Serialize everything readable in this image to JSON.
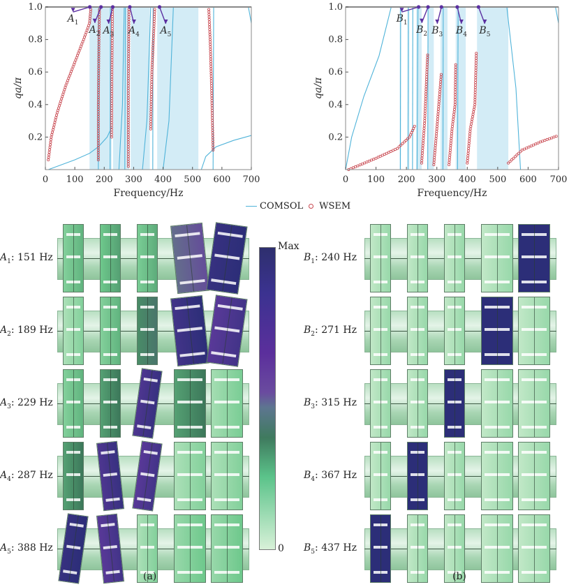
{
  "legend": {
    "comsol_label": "COMSOL",
    "wsem_label": "WSEM",
    "comsol_color": "#4fb3d9",
    "wsem_color": "#c8474f"
  },
  "chart_data": [
    {
      "type": "line",
      "panel": "a",
      "xlabel": "Frequency/Hz",
      "ylabel": "qa/π",
      "xlim": [
        0,
        700
      ],
      "ylim": [
        0,
        1.0
      ],
      "xticks": [
        0,
        100,
        200,
        300,
        400,
        500,
        600,
        700
      ],
      "yticks": [
        0.2,
        0.4,
        0.6,
        0.8,
        1.0
      ],
      "bandgaps": [
        [
          150,
          225
        ],
        [
          230,
          285
        ],
        [
          290,
          355
        ],
        [
          380,
          520
        ]
      ],
      "series": [
        {
          "name": "COMSOL",
          "kind": "line",
          "curves": [
            [
              [
                10,
                0
              ],
              [
                100,
                0.06
              ],
              [
                150,
                0.1
              ],
              [
                180,
                0.14
              ],
              [
                210,
                0.2
              ],
              [
                225,
                0.26
              ]
            ],
            [
              [
                530,
                0
              ],
              [
                545,
                0.08
              ],
              [
                580,
                0.14
              ],
              [
                640,
                0.18
              ],
              [
                700,
                0.21
              ]
            ],
            [
              [
                690,
                1.0
              ],
              [
                700,
                0.9
              ]
            ],
            [
              [
                180,
                0
              ],
              [
                181,
                1.0
              ]
            ],
            [
              [
                220,
                0
              ],
              [
                221,
                1.0
              ]
            ],
            [
              [
                270,
                0
              ],
              [
                272,
                1.0
              ]
            ],
            [
              [
                365,
                0
              ],
              [
                366,
                1.0
              ]
            ],
            [
              [
                570,
                0
              ],
              [
                572,
                1.0
              ]
            ],
            [
              [
                330,
                0
              ],
              [
                345,
                0.3
              ],
              [
                358,
                1.0
              ]
            ],
            [
              [
                400,
                0
              ],
              [
                420,
                0.3
              ],
              [
                435,
                1.0
              ]
            ],
            [
              [
                250,
                0
              ],
              [
                262,
                0.4
              ],
              [
                268,
                1.0
              ]
            ]
          ]
        },
        {
          "name": "WSEM",
          "kind": "scatter",
          "curves": [
            [
              [
                10,
                0.06
              ],
              [
                20,
                0.2
              ],
              [
                40,
                0.35
              ],
              [
                70,
                0.52
              ],
              [
                100,
                0.66
              ],
              [
                130,
                0.8
              ],
              [
                150,
                0.9
              ],
              [
                155,
                1.0
              ]
            ],
            [
              [
                180,
                0.06
              ],
              [
                180,
                0.4
              ],
              [
                182,
                0.8
              ],
              [
                184,
                1.0
              ]
            ],
            [
              [
                225,
                0.2
              ],
              [
                226,
                0.6
              ],
              [
                228,
                1.0
              ]
            ],
            [
              [
                282,
                0.02
              ],
              [
                282,
                0.5
              ],
              [
                284,
                1.0
              ]
            ],
            [
              [
                358,
                0.25
              ],
              [
                362,
                0.6
              ],
              [
                372,
                1.0
              ]
            ],
            [
              [
                570,
                0.12
              ],
              [
                565,
                0.5
              ],
              [
                560,
                0.8
              ],
              [
                555,
                1.0
              ]
            ]
          ]
        }
      ],
      "annotations": [
        {
          "label": "A1",
          "x": 151,
          "y": 1.0
        },
        {
          "label": "A2",
          "x": 189,
          "y": 1.0
        },
        {
          "label": "A3",
          "x": 229,
          "y": 1.0
        },
        {
          "label": "A4",
          "x": 287,
          "y": 1.0
        },
        {
          "label": "A5",
          "x": 388,
          "y": 1.0
        }
      ]
    },
    {
      "type": "line",
      "panel": "b",
      "xlabel": "Frequency/Hz",
      "ylabel": "qa/π",
      "xlim": [
        0,
        700
      ],
      "ylim": [
        0,
        1.0
      ],
      "xticks": [
        0,
        100,
        200,
        300,
        400,
        500,
        600,
        700
      ],
      "yticks": [
        0.2,
        0.4,
        0.6,
        0.8,
        1.0
      ],
      "bandgaps": [
        [
          178,
          182
        ],
        [
          205,
          210
        ],
        [
          232,
          250
        ],
        [
          270,
          290
        ],
        [
          312,
          335
        ],
        [
          362,
          395
        ],
        [
          432,
          535
        ]
      ],
      "series": [
        {
          "name": "COMSOL",
          "kind": "line",
          "curves": [
            [
              [
                0,
                0
              ],
              [
                20,
                0.2
              ],
              [
                60,
                0.45
              ],
              [
                110,
                0.7
              ],
              [
                150,
                1.0
              ]
            ],
            [
              [
                180,
                0
              ],
              [
                181,
                1.0
              ]
            ],
            [
              [
                205,
                0
              ],
              [
                206,
                1.0
              ]
            ],
            [
              [
                220,
                0
              ],
              [
                221,
                1.0
              ]
            ],
            [
              [
                235,
                0
              ],
              [
                238,
                1.0
              ]
            ],
            [
              [
                270,
                0
              ],
              [
                271,
                1.0
              ]
            ],
            [
              [
                320,
                0
              ],
              [
                321,
                1.0
              ]
            ],
            [
              [
                368,
                0
              ],
              [
                370,
                1.0
              ]
            ],
            [
              [
                530,
                1.0
              ],
              [
                560,
                0.5
              ],
              [
                575,
                0
              ]
            ],
            [
              [
                690,
                1.0
              ],
              [
                700,
                0.9
              ]
            ]
          ]
        },
        {
          "name": "WSEM",
          "kind": "scatter",
          "curves": [
            [
              [
                10,
                0
              ],
              [
                100,
                0.07
              ],
              [
                170,
                0.13
              ],
              [
                210,
                0.2
              ],
              [
                230,
                0.28
              ]
            ],
            [
              [
                250,
                0.04
              ],
              [
                260,
                0.3
              ],
              [
                270,
                0.72
              ]
            ],
            [
              [
                290,
                0.03
              ],
              [
                300,
                0.25
              ],
              [
                315,
                0.6
              ]
            ],
            [
              [
                340,
                0.03
              ],
              [
                350,
                0.25
              ],
              [
                360,
                0.4
              ],
              [
                362,
                0.66
              ]
            ],
            [
              [
                400,
                0.04
              ],
              [
                410,
                0.25
              ],
              [
                425,
                0.4
              ],
              [
                430,
                0.73
              ]
            ],
            [
              [
                535,
                0.04
              ],
              [
                580,
                0.12
              ],
              [
                640,
                0.17
              ],
              [
                700,
                0.21
              ]
            ]
          ]
        }
      ],
      "annotations": [
        {
          "label": "B1",
          "x": 240,
          "y": 1.0
        },
        {
          "label": "B2",
          "x": 271,
          "y": 1.0
        },
        {
          "label": "B3",
          "x": 315,
          "y": 1.0
        },
        {
          "label": "B4",
          "x": 367,
          "y": 1.0
        },
        {
          "label": "B5",
          "x": 437,
          "y": 1.0
        }
      ]
    }
  ],
  "modes_a": [
    {
      "sym": "A",
      "sub": "1",
      "freq": ": 151 Hz",
      "levels": [
        0.2,
        0.25,
        0.22,
        0.6,
        0.95
      ]
    },
    {
      "sym": "A",
      "sub": "2",
      "freq": ": 189 Hz",
      "levels": [
        0.1,
        0.2,
        0.4,
        0.9,
        0.8
      ]
    },
    {
      "sym": "A",
      "sub": "3",
      "freq": ": 229 Hz",
      "levels": [
        0.2,
        0.35,
        0.85,
        0.35,
        0.12
      ]
    },
    {
      "sym": "A",
      "sub": "4",
      "freq": ": 287 Hz",
      "levels": [
        0.35,
        0.85,
        0.8,
        0.1,
        0.1
      ]
    },
    {
      "sym": "A",
      "sub": "5",
      "freq": ": 388 Hz",
      "levels": [
        0.95,
        0.8,
        0.1,
        0.15,
        0.15
      ]
    }
  ],
  "modes_b": [
    {
      "sym": "B",
      "sub": "1",
      "freq": ": 240 Hz",
      "levels": [
        0.05,
        0.05,
        0.05,
        0.05,
        1.0
      ]
    },
    {
      "sym": "B",
      "sub": "2",
      "freq": ": 271 Hz",
      "levels": [
        0.05,
        0.05,
        0.05,
        1.0,
        0.05
      ]
    },
    {
      "sym": "B",
      "sub": "3",
      "freq": ": 315 Hz",
      "levels": [
        0.05,
        0.05,
        1.0,
        0.05,
        0.05
      ]
    },
    {
      "sym": "B",
      "sub": "4",
      "freq": ": 367 Hz",
      "levels": [
        0.05,
        1.0,
        0.05,
        0.05,
        0.05
      ]
    },
    {
      "sym": "B",
      "sub": "5",
      "freq": ": 437 Hz",
      "levels": [
        1.0,
        0.05,
        0.05,
        0.05,
        0.05
      ]
    }
  ],
  "colorbar": {
    "max_label": "Max",
    "min_label": "0"
  },
  "captions": {
    "a": "(a)",
    "b": "(b)"
  }
}
